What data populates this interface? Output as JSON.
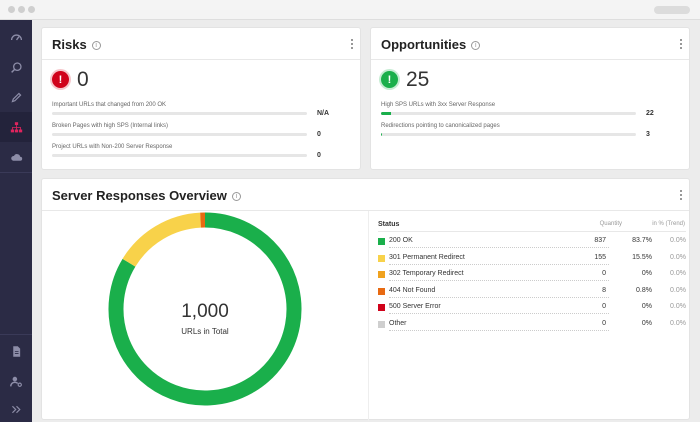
{
  "app": {
    "sidebar": {
      "items": [
        {
          "icon": "speedometer-icon"
        },
        {
          "icon": "search-analysis-icon"
        },
        {
          "icon": "pencil-icon"
        },
        {
          "icon": "sitemap-icon",
          "active": true
        },
        {
          "icon": "cloud-icon"
        },
        {
          "icon": "report-document-icon"
        },
        {
          "icon": "user-settings-icon"
        },
        {
          "icon": "expand-chevrons-icon"
        }
      ]
    }
  },
  "risks": {
    "title": "Risks",
    "count": "0",
    "alert_glyph": "!",
    "metrics": [
      {
        "label": "Important URLs that changed from 200 OK",
        "value": "N/A",
        "fill": 0
      },
      {
        "label": "Broken Pages with high SPS (Internal links)",
        "value": "0",
        "fill": 0
      },
      {
        "label": "Project URLs with Non-200 Server Response",
        "value": "0",
        "fill": 0
      }
    ]
  },
  "opportunities": {
    "title": "Opportunities",
    "count": "25",
    "alert_glyph": "!",
    "metrics": [
      {
        "label": "High SPS URLs with 3xx Server Response",
        "value": "22",
        "fill": 0.04
      },
      {
        "label": "Redirections pointing to canonicalized pages",
        "value": "3",
        "fill": 0.005
      }
    ]
  },
  "server_responses": {
    "title": "Server Responses Overview",
    "total": "1,000",
    "total_label": "URLs in Total",
    "headers": {
      "status": "Status",
      "quantity": "Quantity",
      "trend": "in % (Trend)"
    },
    "rows": [
      {
        "label": "200 OK",
        "quantity": "837",
        "percent": "83.7%",
        "trend": "0.0%",
        "color": "#1aaf4b"
      },
      {
        "label": "301 Permanent Redirect",
        "quantity": "155",
        "percent": "15.5%",
        "trend": "0.0%",
        "color": "#f8d24a"
      },
      {
        "label": "302 Temporary Redirect",
        "quantity": "0",
        "percent": "0%",
        "trend": "0.0%",
        "color": "#f0a21e"
      },
      {
        "label": "404 Not Found",
        "quantity": "8",
        "percent": "0.8%",
        "trend": "0.0%",
        "color": "#e86a12"
      },
      {
        "label": "500 Server Error",
        "quantity": "0",
        "percent": "0%",
        "trend": "0.0%",
        "color": "#d0021b"
      },
      {
        "label": "Other",
        "quantity": "0",
        "percent": "0%",
        "trend": "0.0%",
        "color": "#cfcfcf"
      }
    ]
  },
  "chart_data": {
    "type": "pie",
    "style": "donut",
    "categories": [
      "200 OK",
      "301 Permanent Redirect",
      "302 Temporary Redirect",
      "404 Not Found",
      "500 Server Error",
      "Other"
    ],
    "values": [
      837,
      155,
      0,
      8,
      0,
      0
    ],
    "colors": [
      "#1aaf4b",
      "#f8d24a",
      "#f0a21e",
      "#e86a12",
      "#d0021b",
      "#cfcfcf"
    ],
    "title": "Server Responses Overview",
    "center_text": "1,000",
    "center_subtext": "URLs in Total"
  }
}
